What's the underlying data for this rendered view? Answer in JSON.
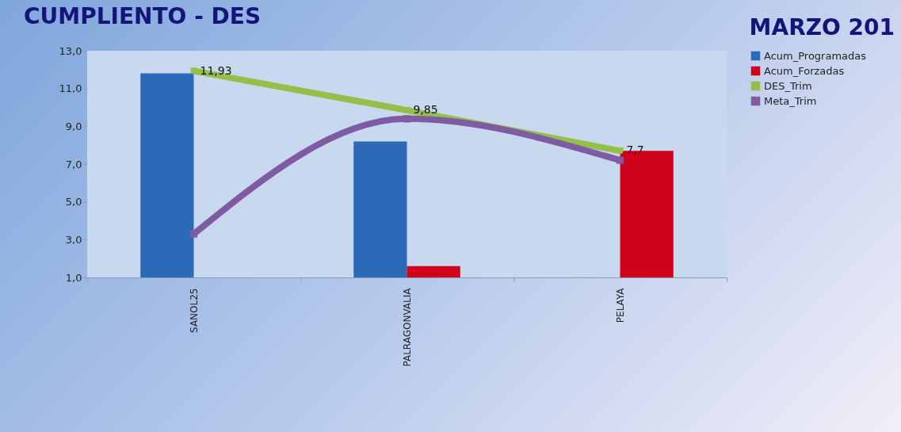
{
  "chart_data": {
    "type": "bar",
    "title": "CUMPLIENTO - DES",
    "subtitle": "MARZO 201",
    "categories": [
      "SANOL25",
      "PALRAGONVALIA",
      "PELAYA"
    ],
    "series": [
      {
        "name": "Acum_Programadas",
        "color": "#2c6ab7",
        "values": [
          11.8,
          8.2,
          null
        ]
      },
      {
        "name": "Acum_Forzadas",
        "color": "#d0021b",
        "values": [
          null,
          1.6,
          7.7
        ]
      },
      {
        "name": "DES_Trim",
        "type": "line",
        "color": "#94c04a",
        "marker": "triangle",
        "values": [
          11.93,
          9.85,
          7.7
        ],
        "value_labels": [
          "11,93",
          "9,85",
          "7,7"
        ]
      },
      {
        "name": "Meta_Trim",
        "type": "line",
        "color": "#7e5ba3",
        "marker": "square",
        "values": [
          3.3,
          9.4,
          7.2
        ]
      }
    ],
    "ylim": [
      1,
      13
    ],
    "yticks": [
      {
        "value": 1,
        "label": "1,0"
      },
      {
        "value": 3,
        "label": "3,0"
      },
      {
        "value": 5,
        "label": "5,0"
      },
      {
        "value": 7,
        "label": "7,0"
      },
      {
        "value": 9,
        "label": "9,0"
      },
      {
        "value": 11,
        "label": "11,0"
      },
      {
        "value": 13,
        "label": "13,0"
      }
    ],
    "legend": "right",
    "line_style": "solid"
  }
}
